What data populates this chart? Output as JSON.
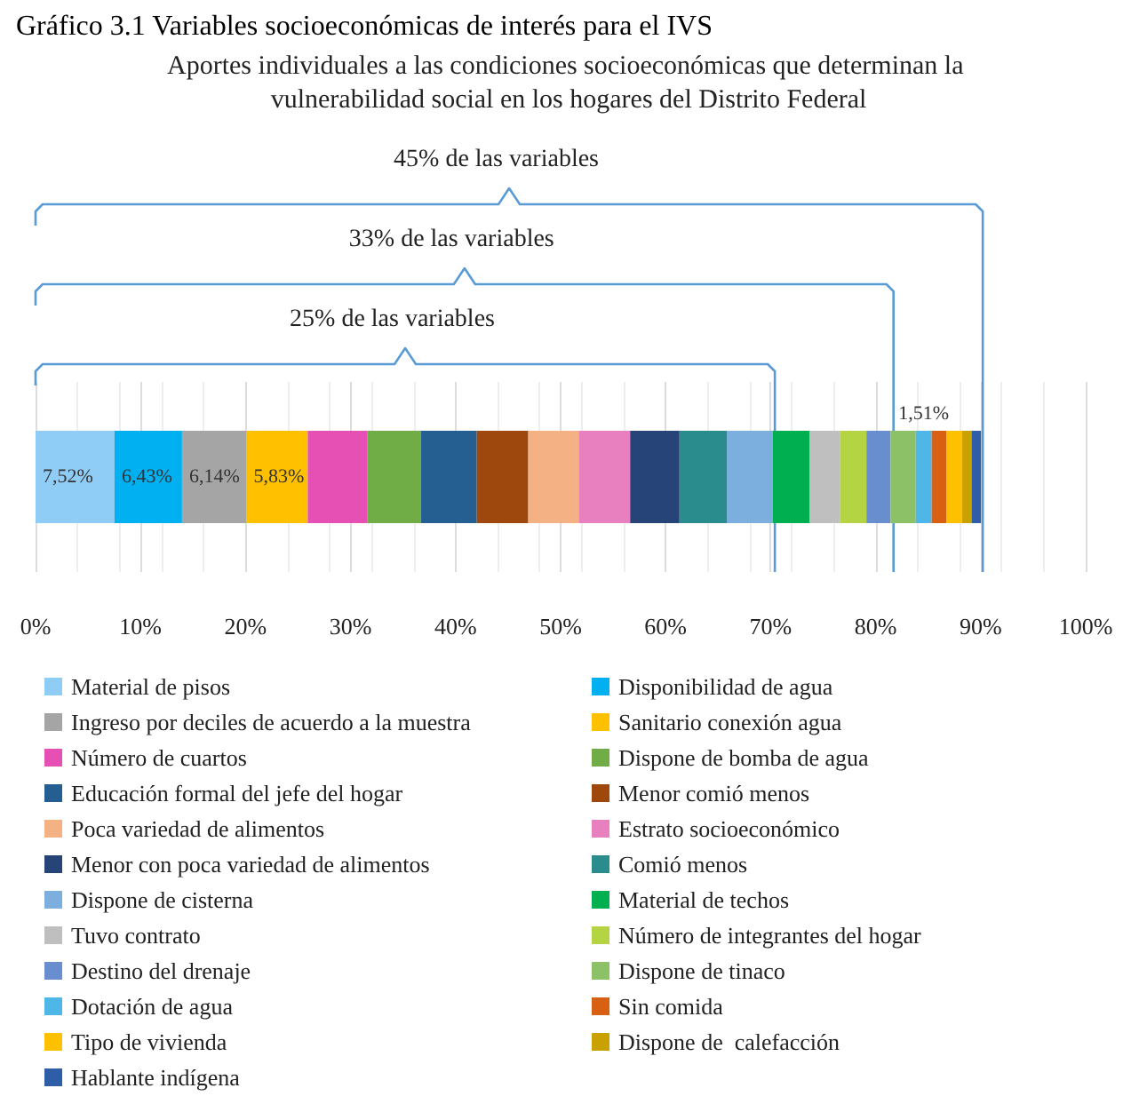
{
  "chart_data": {
    "type": "bar",
    "orientation": "horizontal",
    "stacked": true,
    "title": "Gráfico 3.1 Variables socioeconómicas de interés para el IVS",
    "subtitle": "Aportes individuales a las condiciones socioeconómicas que determinan la vulnerabilidad social en los hogares del Distrito Federal",
    "categories": [
      null
    ],
    "xlim": [
      0,
      100
    ],
    "xticks": [
      {
        "value": 0,
        "label": "0%"
      },
      {
        "value": 10,
        "label": "10%"
      },
      {
        "value": 20,
        "label": "20%"
      },
      {
        "value": 30,
        "label": "30%"
      },
      {
        "value": 40,
        "label": "40%"
      },
      {
        "value": 50,
        "label": "50%"
      },
      {
        "value": 60,
        "label": "60%"
      },
      {
        "value": 70,
        "label": "70%"
      },
      {
        "value": 80,
        "label": "80%"
      },
      {
        "value": 90,
        "label": "90%"
      },
      {
        "value": 100,
        "label": "100%"
      }
    ],
    "grid": "x",
    "legend": "bottom",
    "ref_lines": [
      {
        "axis": "x",
        "value": 90.2,
        "label": "45% de las variables",
        "color": "#5b9bd5"
      },
      {
        "axis": "x",
        "value": 81.7,
        "label": "33% de las variables",
        "color": "#5b9bd5"
      },
      {
        "axis": "x",
        "value": 70.4,
        "label": "25% de las variables",
        "color": "#5b9bd5"
      }
    ],
    "series": [
      {
        "name": "Material de pisos",
        "color": "#8fcdf7",
        "values": [
          7.52
        ],
        "value_labels": [
          "7,52%"
        ]
      },
      {
        "name": "Disponibilidad de agua",
        "color": "#00b0f0",
        "values": [
          6.43
        ],
        "value_labels": [
          "6,43%"
        ]
      },
      {
        "name": "Ingreso por deciles de acuerdo a la muestra",
        "color": "#a5a5a5",
        "values": [
          6.14
        ],
        "value_labels": [
          "6,14%"
        ]
      },
      {
        "name": "Sanitario conexión agua",
        "color": "#ffc000",
        "values": [
          5.83
        ],
        "value_labels": [
          "5,83%"
        ]
      },
      {
        "name": "Número de cuartos",
        "color": "#e64fb4",
        "values": [
          5.7
        ]
      },
      {
        "name": "Dispone de bomba de agua",
        "color": "#70ad47",
        "values": [
          5.1
        ]
      },
      {
        "name": "Educación formal del jefe del hogar",
        "color": "#255e91",
        "values": [
          5.3
        ]
      },
      {
        "name": "Menor comió menos",
        "color": "#9e480e",
        "values": [
          4.9
        ]
      },
      {
        "name": "Poca variedad de alimentos",
        "color": "#f4b183",
        "values": [
          4.8
        ]
      },
      {
        "name": "Estrato socioeconómico",
        "color": "#e87fbf",
        "values": [
          4.9
        ]
      },
      {
        "name": "Menor con poca variedad de alimentos",
        "color": "#264478",
        "values": [
          4.7
        ]
      },
      {
        "name": "Comió menos",
        "color": "#2a8c8c",
        "values": [
          4.5
        ]
      },
      {
        "name": "Dispone de cisterna",
        "color": "#7cafdd",
        "values": [
          4.4
        ]
      },
      {
        "name": "Material de techos",
        "color": "#00b050",
        "values": [
          3.5
        ]
      },
      {
        "name": "Tuvo contrato",
        "color": "#bfbfbf",
        "values": [
          2.9
        ]
      },
      {
        "name": "Número de integrantes del hogar",
        "color": "#b4d443",
        "values": [
          2.5
        ]
      },
      {
        "name": "Destino del drenaje",
        "color": "#698ed0",
        "values": [
          2.3
        ]
      },
      {
        "name": "Dispone de tinaco",
        "color": "#8cc168",
        "values": [
          2.4
        ]
      },
      {
        "name": "Dotación de agua",
        "color": "#4fb6e8",
        "values": [
          1.51
        ],
        "value_labels": [
          "1,51%"
        ]
      },
      {
        "name": "Sin comida",
        "color": "#d86013",
        "values": [
          1.4
        ]
      },
      {
        "name": "Tipo de vivienda",
        "color": "#ffc000",
        "values": [
          1.5
        ]
      },
      {
        "name": "Dispone de  calefacción",
        "color": "#c9a100",
        "values": [
          0.9
        ]
      },
      {
        "name": "Hablante indígena",
        "color": "#2e5ea8",
        "values": [
          0.9
        ]
      }
    ]
  }
}
